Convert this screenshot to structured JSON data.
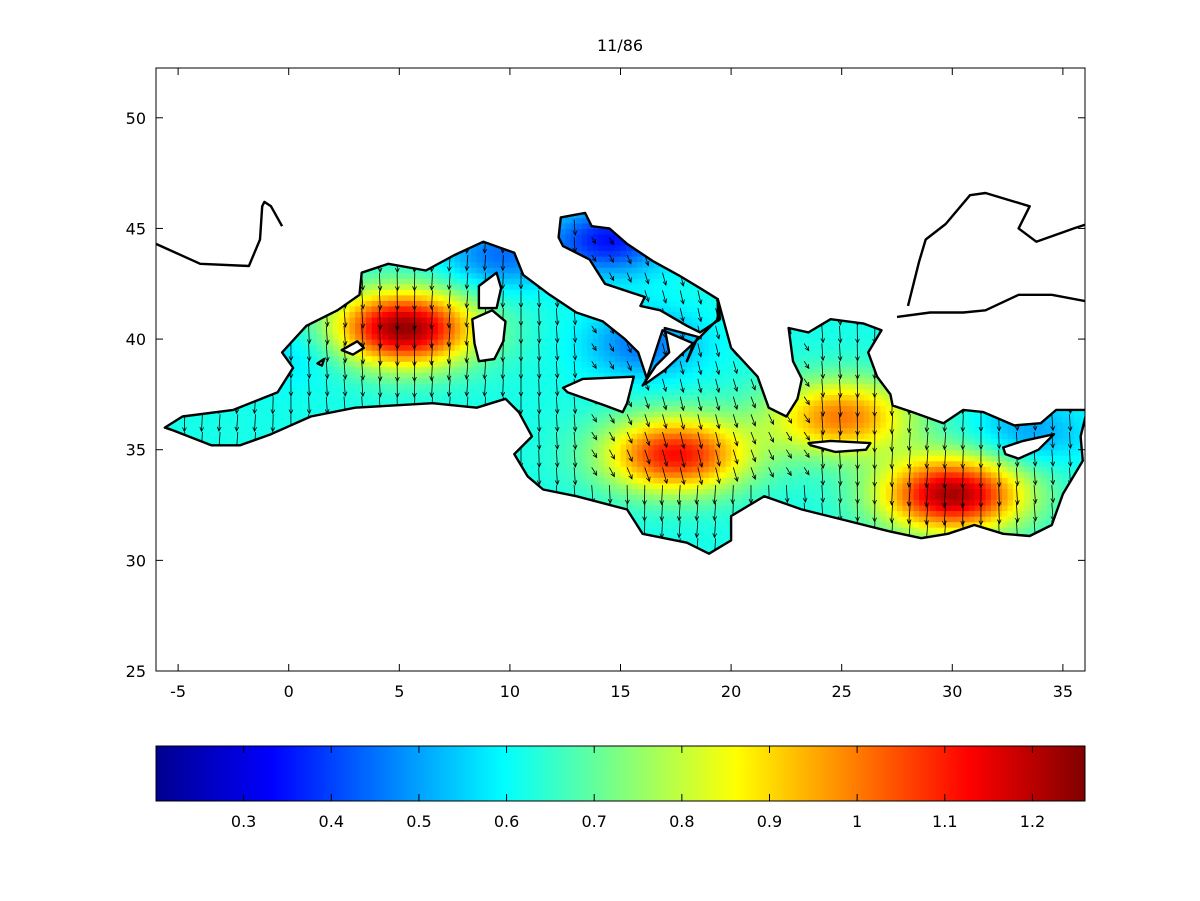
{
  "title": "11/86",
  "map": {
    "kind": "gridded-field-with-vectors",
    "region": "Mediterranean Sea",
    "lon_range": [
      -6,
      36
    ],
    "lat_range": [
      25,
      52.25
    ],
    "x_ticks": [
      -5,
      0,
      5,
      10,
      15,
      20,
      25,
      30,
      35
    ],
    "y_ticks": [
      25,
      30,
      35,
      40,
      45,
      50
    ],
    "x_tick_labels": [
      "-5",
      "0",
      "5",
      "10",
      "15",
      "20",
      "25",
      "30",
      "35"
    ],
    "y_tick_labels": [
      "25",
      "30",
      "35",
      "40",
      "45",
      "50"
    ],
    "colormap": "jet",
    "land_color": "#ffffff",
    "coastline_color": "#000000",
    "vector_color": "#000000"
  },
  "colorbar": {
    "range": [
      0.2,
      1.26
    ],
    "ticks": [
      0.3,
      0.4,
      0.5,
      0.6,
      0.7,
      0.8,
      0.9,
      1,
      1.1,
      1.2
    ],
    "tick_labels": [
      "0.3",
      "0.4",
      "0.5",
      "0.6",
      "0.7",
      "0.8",
      "0.9",
      "1",
      "1.1",
      "1.2"
    ],
    "orientation": "horizontal"
  },
  "field_highs": [
    {
      "lon": 5.2,
      "lat": 40.5,
      "value": 1.24
    },
    {
      "lon": 17.5,
      "lat": 34.8,
      "value": 1.12
    },
    {
      "lon": 30.0,
      "lat": 33.0,
      "value": 1.22
    },
    {
      "lon": 25.0,
      "lat": 36.5,
      "value": 1.0
    }
  ]
}
